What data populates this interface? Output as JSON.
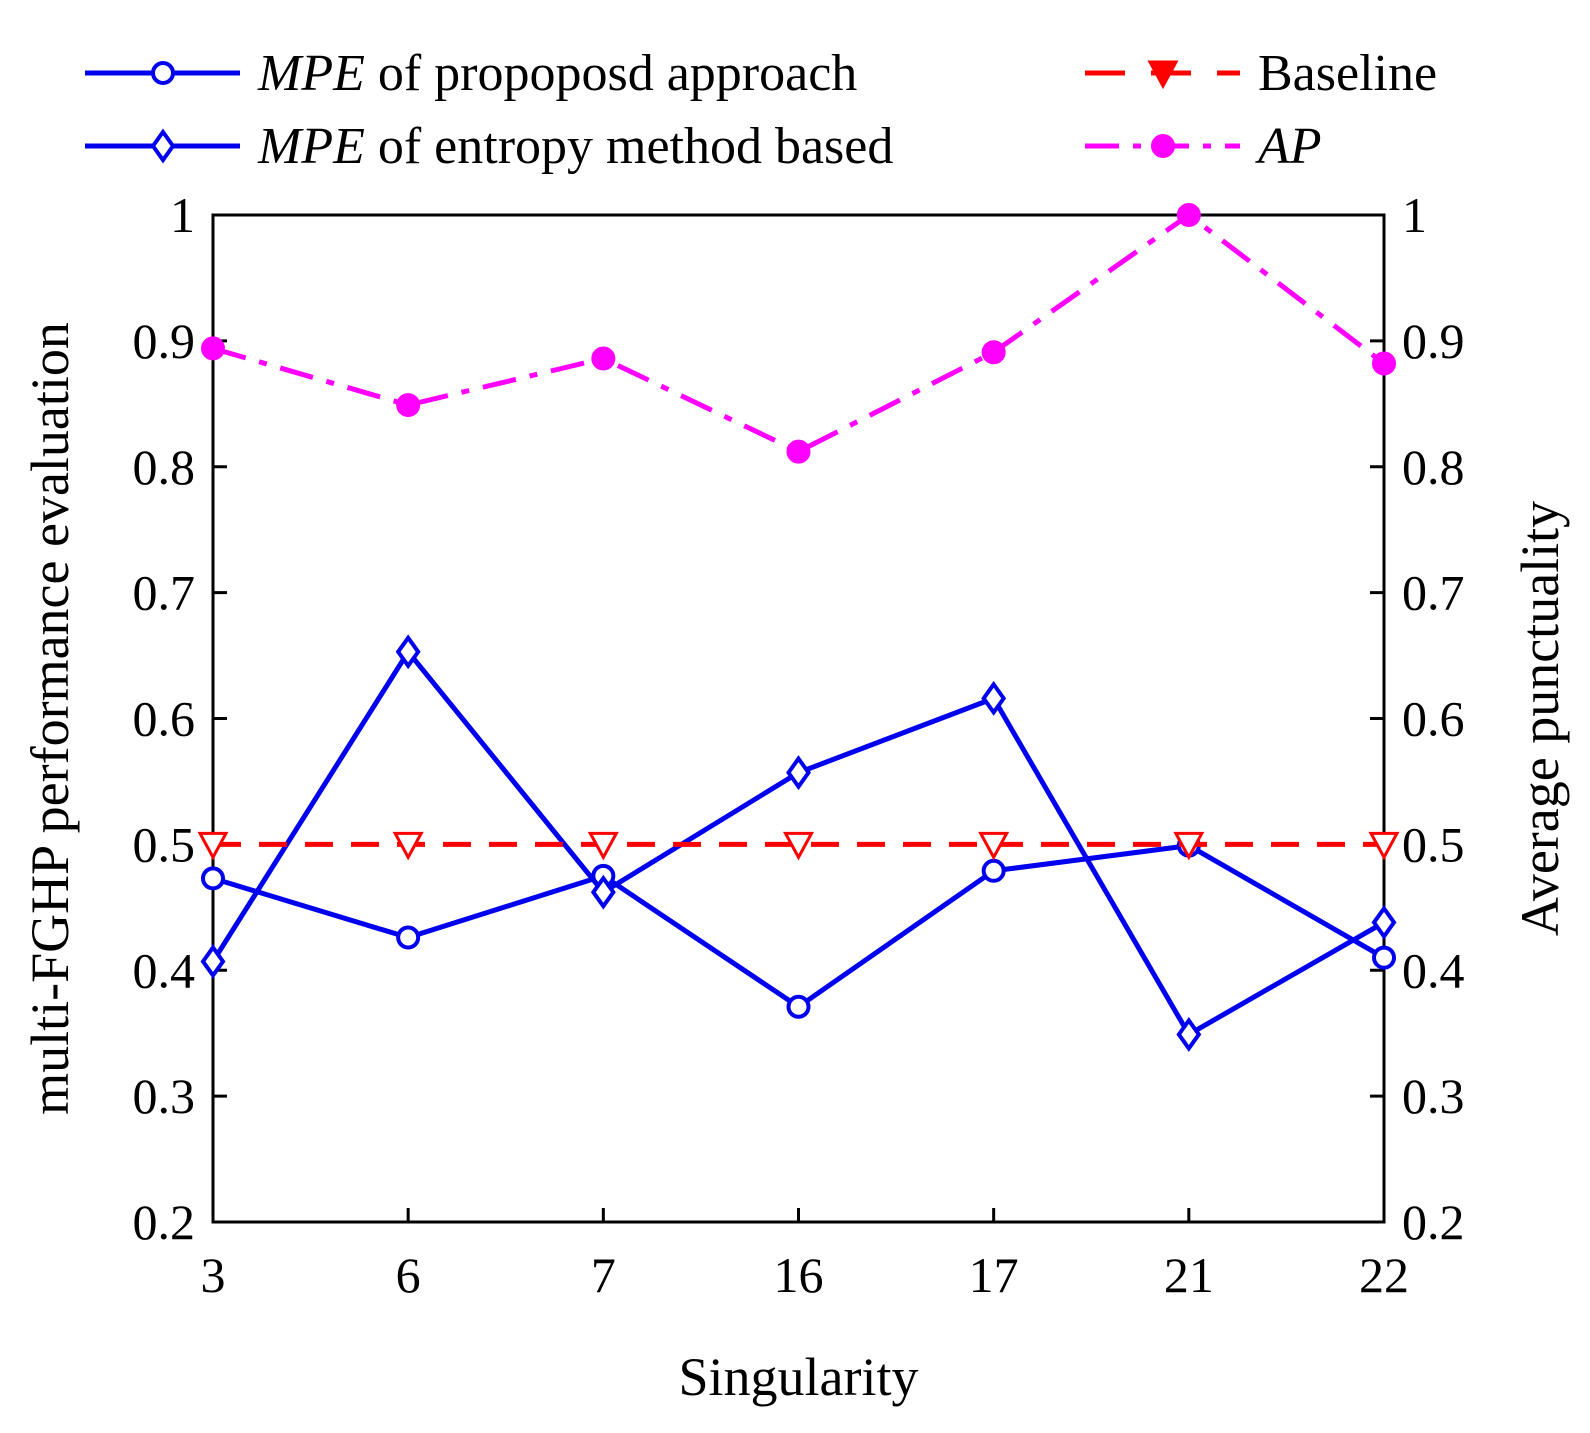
{
  "chart_data": {
    "type": "line",
    "xlabel": "Singularity",
    "ylabel_left": "multi-FGHP performance evaluation",
    "ylabel_right": "Average punctuality",
    "categories": [
      "3",
      "6",
      "7",
      "16",
      "17",
      "21",
      "22"
    ],
    "ylim": [
      0.2,
      1
    ],
    "y_ticks": [
      "0.2",
      "0.3",
      "0.4",
      "0.5",
      "0.6",
      "0.7",
      "0.8",
      "0.9",
      "1"
    ],
    "y_ticks_right": [
      "0.2",
      "0.3",
      "0.4",
      "0.5",
      "0.6",
      "0.7",
      "0.8",
      "0.9",
      "1"
    ],
    "grid": false,
    "legend_position": "top",
    "series": [
      {
        "name": "MPE of propoposd approach",
        "name_italic": "MPE",
        "name_rest": " of propoposd approach",
        "axis": "left",
        "color": "#0000ee",
        "line_style": "solid",
        "marker": "circle",
        "values": [
          0.473,
          0.426,
          0.475,
          0.371,
          0.479,
          0.499,
          0.41
        ]
      },
      {
        "name": "MPE of entropy method based",
        "name_italic": "MPE",
        "name_rest": " of entropy method based",
        "axis": "left",
        "color": "#0000ee",
        "line_style": "solid",
        "marker": "diamond",
        "values": [
          0.407,
          0.653,
          0.462,
          0.557,
          0.616,
          0.349,
          0.438
        ]
      },
      {
        "name": "Baseline",
        "name_italic": "",
        "name_rest": "Baseline",
        "axis": "left",
        "color": "#ff0000",
        "line_style": "dashed",
        "marker": "triangle-down",
        "values": [
          0.5,
          0.5,
          0.5,
          0.5,
          0.5,
          0.5,
          0.5
        ]
      },
      {
        "name": "AP",
        "name_italic": "AP",
        "name_rest": "",
        "axis": "right",
        "color": "#ff00ff",
        "line_style": "dashdot",
        "marker": "filled-circle",
        "values": [
          0.894,
          0.849,
          0.886,
          0.812,
          0.891,
          1.0,
          0.882
        ]
      }
    ]
  }
}
